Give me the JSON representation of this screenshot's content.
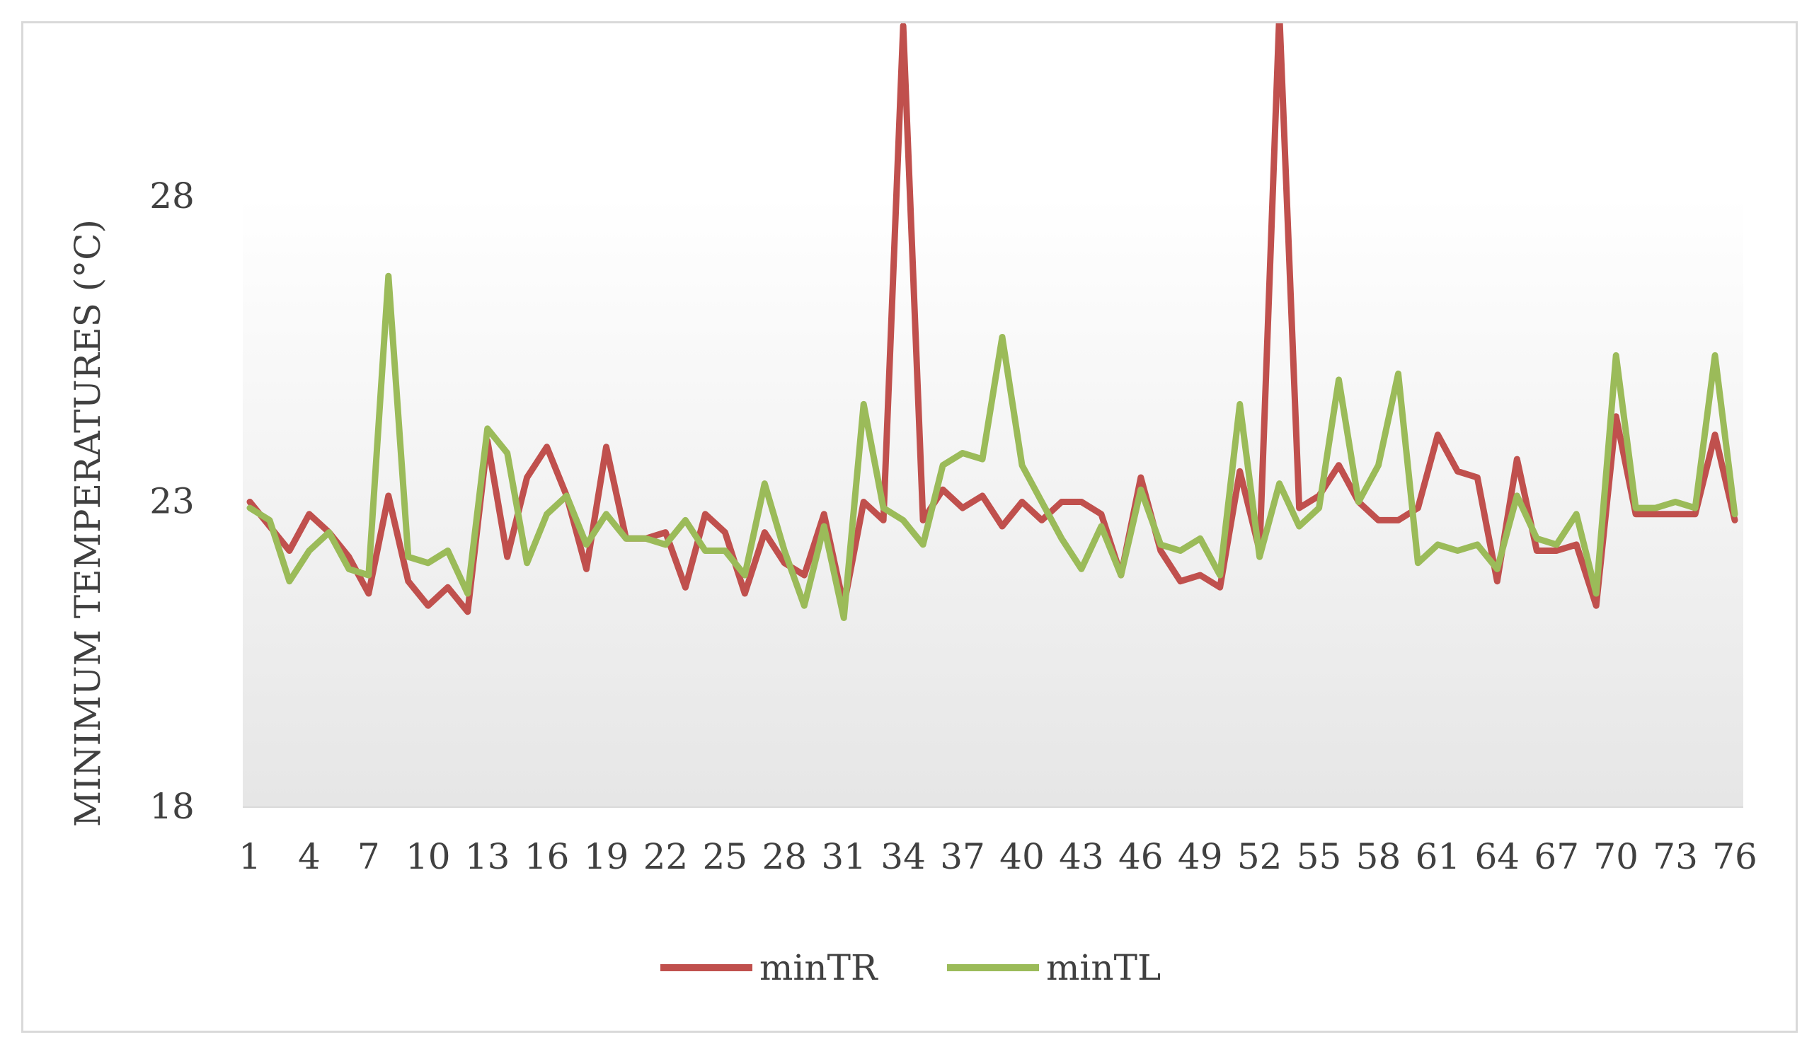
{
  "chart_data": {
    "type": "line",
    "ylabel": "MINIMUM TEMPERATURES (°C)",
    "xlabel": "",
    "title": "",
    "ylim": [
      18,
      28
    ],
    "yticks": [
      18,
      23,
      28
    ],
    "x": [
      1,
      2,
      3,
      4,
      5,
      6,
      7,
      8,
      9,
      10,
      11,
      12,
      13,
      14,
      15,
      16,
      17,
      18,
      19,
      20,
      21,
      22,
      23,
      24,
      25,
      26,
      27,
      28,
      29,
      30,
      31,
      32,
      33,
      34,
      35,
      36,
      37,
      38,
      39,
      40,
      41,
      42,
      43,
      44,
      45,
      46,
      47,
      48,
      49,
      50,
      51,
      52,
      53,
      54,
      55,
      56,
      57,
      58,
      59,
      60,
      61,
      62,
      63,
      64,
      65,
      66,
      67,
      68,
      69,
      70,
      71,
      72,
      73,
      74,
      75,
      76
    ],
    "xtick_labels": [
      "1",
      "4",
      "7",
      "10",
      "13",
      "16",
      "19",
      "22",
      "25",
      "28",
      "31",
      "34",
      "37",
      "40",
      "43",
      "46",
      "49",
      "52",
      "55",
      "58",
      "61",
      "64",
      "67",
      "70",
      "73",
      "76"
    ],
    "legend_position": "bottom",
    "grid": false,
    "series": [
      {
        "name": "minTR",
        "color": "#c0504d",
        "values": [
          23.0,
          22.6,
          22.2,
          22.8,
          22.5,
          22.1,
          21.5,
          23.1,
          21.7,
          21.3,
          21.6,
          21.2,
          24.0,
          22.1,
          23.4,
          23.9,
          23.1,
          21.9,
          23.9,
          22.4,
          22.4,
          22.5,
          21.6,
          22.8,
          22.5,
          21.5,
          22.5,
          22.0,
          21.8,
          22.8,
          21.3,
          23.0,
          22.7,
          30.8,
          22.7,
          23.2,
          22.9,
          23.1,
          22.6,
          23.0,
          22.7,
          23.0,
          23.0,
          22.8,
          21.8,
          23.4,
          22.2,
          21.7,
          21.8,
          21.6,
          23.5,
          22.2,
          31.0,
          22.9,
          23.1,
          23.6,
          23.0,
          22.7,
          22.7,
          22.9,
          24.1,
          23.5,
          23.4,
          21.7,
          23.7,
          22.2,
          22.2,
          22.3,
          21.3,
          24.4,
          22.8,
          22.8,
          22.8,
          22.8,
          24.1,
          22.7
        ],
        "series_visible_note": ""
      },
      {
        "name": "minTL",
        "color": "#9bbb59",
        "values": [
          22.9,
          22.7,
          21.7,
          22.2,
          22.5,
          21.9,
          21.8,
          26.7,
          22.1,
          22.0,
          22.2,
          21.5,
          24.2,
          23.8,
          22.0,
          22.8,
          23.1,
          22.3,
          22.8,
          22.4,
          22.4,
          22.3,
          22.7,
          22.2,
          22.2,
          21.8,
          23.3,
          22.2,
          21.3,
          22.6,
          21.1,
          24.6,
          22.9,
          22.7,
          22.3,
          23.6,
          23.8,
          23.7,
          25.7,
          23.6,
          23.0,
          22.4,
          21.9,
          22.6,
          21.8,
          23.2,
          22.3,
          22.2,
          22.4,
          21.8,
          24.6,
          22.1,
          23.3,
          22.6,
          22.9,
          25.0,
          23.0,
          23.6,
          25.1,
          22.0,
          22.3,
          22.2,
          22.3,
          21.9,
          23.1,
          22.4,
          22.3,
          22.8,
          21.5,
          25.4,
          22.9,
          22.9,
          23.0,
          22.9,
          25.4,
          22.8
        ]
      }
    ]
  },
  "legend": {
    "series1_label": "minTR",
    "series2_label": "minTL"
  }
}
